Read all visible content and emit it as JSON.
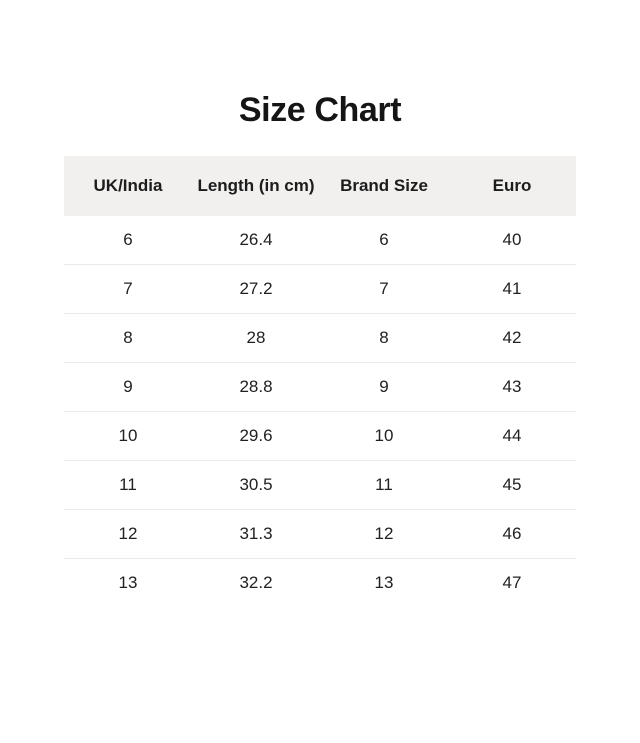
{
  "page": {
    "background_color": "#ffffff",
    "text_color": "#1f1f1f"
  },
  "chart_data": {
    "type": "table",
    "title": "Size Chart",
    "columns": [
      "UK/India",
      "Length (in cm)",
      "Brand Size",
      "Euro"
    ],
    "rows": [
      [
        "6",
        "26.4",
        "6",
        "40"
      ],
      [
        "7",
        "27.2",
        "7",
        "41"
      ],
      [
        "8",
        "28",
        "8",
        "42"
      ],
      [
        "9",
        "28.8",
        "9",
        "43"
      ],
      [
        "10",
        "29.6",
        "10",
        "44"
      ],
      [
        "11",
        "30.5",
        "11",
        "45"
      ],
      [
        "12",
        "31.3",
        "12",
        "46"
      ],
      [
        "13",
        "32.2",
        "13",
        "47"
      ]
    ],
    "layout": {
      "header_background": "#f1f0ef",
      "row_divider_color": "#eae9e7",
      "grid": "horizontal-dividers-only",
      "alignment": "center"
    }
  }
}
